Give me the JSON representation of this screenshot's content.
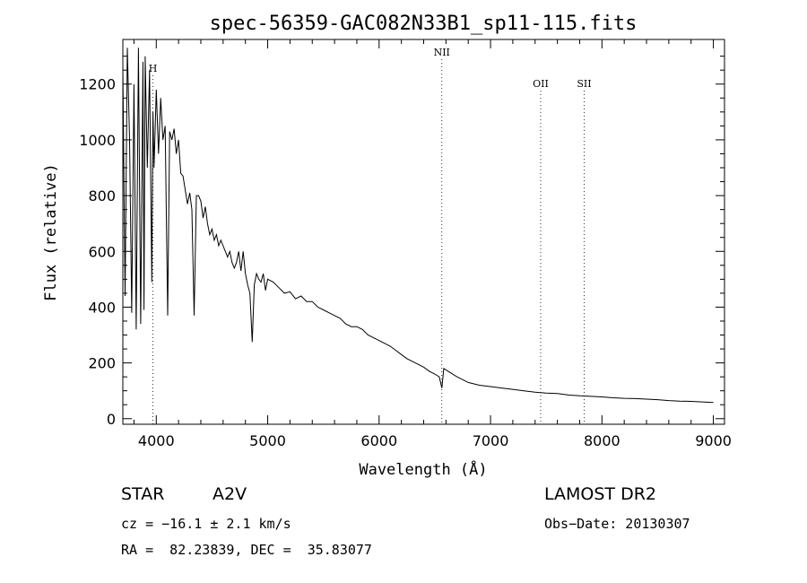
{
  "chart_data": {
    "type": "line",
    "title": "spec-56359-GAC082N33B1_sp11-115.fits",
    "xlabel": "Wavelength (Å)",
    "ylabel": "Flux (relative)",
    "xlim": [
      3700,
      9100
    ],
    "ylim": [
      -20,
      1360
    ],
    "xticks": [
      4000,
      5000,
      6000,
      7000,
      8000,
      9000
    ],
    "yticks": [
      0,
      200,
      400,
      600,
      800,
      1000,
      1200
    ],
    "grid": false,
    "series": [
      {
        "x": [
          3700,
          3720,
          3740,
          3760,
          3780,
          3800,
          3820,
          3840,
          3860,
          3880,
          3890,
          3900,
          3920,
          3940,
          3960,
          3970,
          3980,
          4000,
          4020,
          4040,
          4060,
          4080,
          4102,
          4120,
          4140,
          4160,
          4180,
          4200,
          4220,
          4240,
          4260,
          4280,
          4300,
          4320,
          4340,
          4360,
          4380,
          4400,
          4420,
          4440,
          4460,
          4480,
          4500,
          4520,
          4540,
          4560,
          4580,
          4600,
          4620,
          4640,
          4660,
          4680,
          4700,
          4720,
          4740,
          4760,
          4780,
          4800,
          4820,
          4840,
          4861,
          4880,
          4900,
          4920,
          4940,
          4960,
          4980,
          5000,
          5050,
          5100,
          5150,
          5200,
          5250,
          5300,
          5350,
          5400,
          5450,
          5500,
          5550,
          5600,
          5650,
          5700,
          5750,
          5800,
          5850,
          5900,
          5950,
          6000,
          6050,
          6100,
          6150,
          6200,
          6250,
          6300,
          6350,
          6400,
          6450,
          6500,
          6540,
          6563,
          6580,
          6620,
          6700,
          6800,
          6900,
          7000,
          7100,
          7200,
          7300,
          7400,
          7500,
          7600,
          7700,
          7800,
          7900,
          8000,
          8100,
          8200,
          8300,
          8400,
          8500,
          8600,
          8700,
          8800,
          8900,
          9000
        ],
        "y": [
          1260,
          440,
          1330,
          1000,
          380,
          1200,
          320,
          1330,
          340,
          1280,
          390,
          1300,
          900,
          1250,
          490,
          1100,
          900,
          1180,
          950,
          1150,
          1000,
          1050,
          370,
          1030,
          1000,
          1040,
          950,
          1000,
          880,
          870,
          820,
          770,
          810,
          750,
          370,
          800,
          800,
          780,
          720,
          760,
          700,
          660,
          680,
          640,
          660,
          620,
          640,
          620,
          600,
          580,
          600,
          560,
          540,
          560,
          600,
          530,
          600,
          520,
          480,
          450,
          275,
          480,
          520,
          500,
          490,
          520,
          460,
          500,
          490,
          470,
          450,
          455,
          430,
          440,
          420,
          420,
          400,
          390,
          380,
          370,
          360,
          340,
          330,
          330,
          320,
          300,
          290,
          280,
          270,
          260,
          245,
          230,
          215,
          205,
          195,
          185,
          170,
          160,
          150,
          110,
          180,
          170,
          150,
          130,
          120,
          115,
          110,
          105,
          100,
          95,
          92,
          90,
          85,
          82,
          80,
          78,
          75,
          73,
          72,
          70,
          68,
          65,
          63,
          62,
          60,
          58
        ]
      }
    ],
    "line_markers": [
      {
        "label": "H",
        "x": 3970
      },
      {
        "label": "NII",
        "x": 6563
      },
      {
        "label": "OII",
        "x": 7450
      },
      {
        "label": "SII",
        "x": 7840
      }
    ]
  },
  "info": {
    "object_class": "STAR",
    "subclass": "A2V",
    "survey": "LAMOST DR2",
    "cz": "cz = −16.1 ± 2.1 km/s",
    "obs_date": "Obs−Date: 20130307",
    "coords": "RA =  82.23839, DEC =  35.83077"
  }
}
